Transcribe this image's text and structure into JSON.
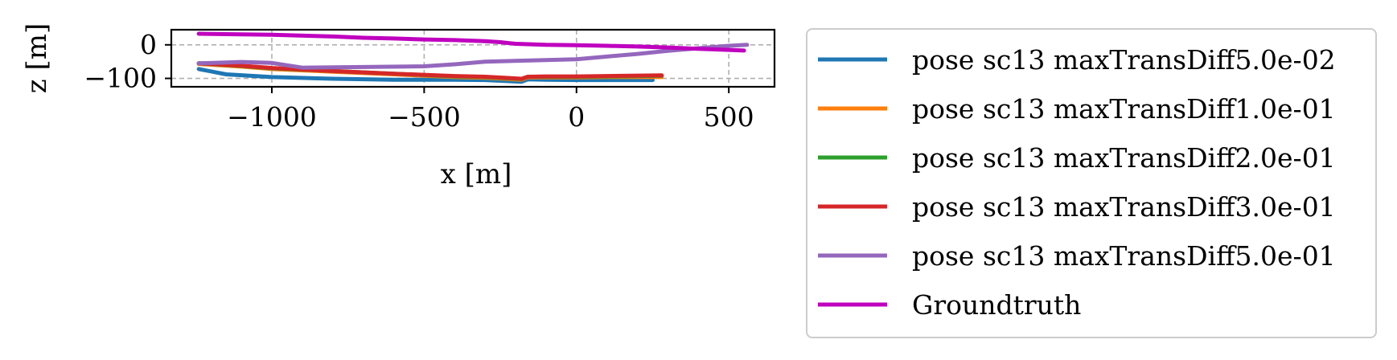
{
  "chart_data": {
    "type": "line",
    "title": "",
    "xlabel": "x [m]",
    "ylabel": "z [m]",
    "xlim": [
      -1330,
      650
    ],
    "ylim": [
      -125,
      45
    ],
    "xticks": [
      -1000,
      -500,
      0,
      500
    ],
    "xtick_labels": [
      "−1000",
      "−500",
      "0",
      "500"
    ],
    "yticks": [
      0,
      -100
    ],
    "ytick_labels": [
      "0",
      "−100"
    ],
    "grid": true,
    "legend_position": "outside-right",
    "series": [
      {
        "name": "pose sc13 maxTransDiff5.0e-02",
        "color": "#1f77b4",
        "x": [
          -1240,
          -1150,
          -1000,
          -800,
          -600,
          -400,
          -300,
          -180,
          -160,
          -100,
          0,
          100,
          250
        ],
        "y": [
          -72,
          -88,
          -96,
          -101,
          -104,
          -104,
          -105,
          -110,
          -103,
          -104,
          -105,
          -105,
          -105
        ]
      },
      {
        "name": "pose sc13 maxTransDiff1.0e-01",
        "color": "#ff7f0e",
        "x": [
          -1240,
          -1100,
          -1000,
          -800,
          -600,
          -400,
          -300,
          -180,
          -160,
          -100,
          0,
          100,
          280
        ],
        "y": [
          -57,
          -65,
          -72,
          -80,
          -88,
          -96,
          -98,
          -104,
          -97,
          -97,
          -97,
          -96,
          -96
        ]
      },
      {
        "name": "pose sc13 maxTransDiff2.0e-01",
        "color": "#2ca02c",
        "x": [
          -1240,
          -1100,
          -1000,
          -800,
          -600,
          -400,
          -300,
          -180,
          -160,
          -100,
          0,
          100,
          280
        ],
        "y": [
          -55,
          -63,
          -70,
          -78,
          -86,
          -94,
          -96,
          -102,
          -95,
          -95,
          -95,
          -94,
          -92
        ]
      },
      {
        "name": "pose sc13 maxTransDiff3.0e-01",
        "color": "#d62728",
        "x": [
          -1240,
          -1100,
          -1000,
          -800,
          -600,
          -400,
          -300,
          -180,
          -160,
          -100,
          0,
          100,
          280
        ],
        "y": [
          -55,
          -62,
          -69,
          -78,
          -86,
          -93,
          -95,
          -101,
          -95,
          -94,
          -94,
          -93,
          -91
        ]
      },
      {
        "name": "pose sc13 maxTransDiff5.0e-01",
        "color": "#9467bd",
        "x": [
          -1240,
          -1100,
          -1000,
          -900,
          -700,
          -500,
          -400,
          -300,
          0,
          100,
          200,
          300,
          400,
          500,
          560
        ],
        "y": [
          -55,
          -51,
          -54,
          -68,
          -66,
          -64,
          -58,
          -50,
          -43,
          -35,
          -27,
          -18,
          -10,
          -3,
          0
        ]
      },
      {
        "name": "Groundtruth",
        "color": "#bf00bf",
        "x": [
          -1240,
          -1000,
          -800,
          -700,
          -600,
          -500,
          -400,
          -300,
          -250,
          -200,
          -100,
          0,
          100,
          200,
          300,
          400,
          500,
          550
        ],
        "y": [
          33,
          30,
          25,
          21,
          19,
          16,
          14,
          11,
          8,
          3,
          0,
          -1,
          -3,
          -5,
          -8,
          -12,
          -15,
          -17
        ]
      }
    ]
  }
}
